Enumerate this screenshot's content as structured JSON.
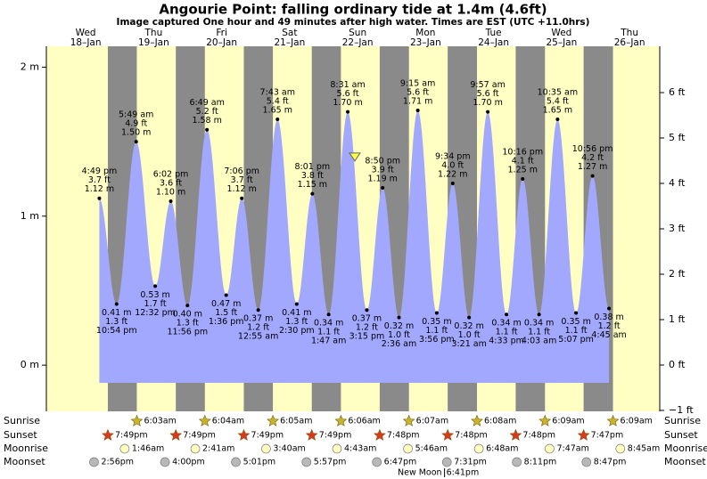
{
  "chart_data": {
    "type": "tide",
    "title": "Angourie Point: falling  ordinary tide at 1.4m (4.6ft)",
    "subtitle": "Image captured One hour and 49 minutes after high water. Times are EST (UTC +11.0hrs)",
    "ylim": [
      -0.31,
      2.14
    ],
    "yticks": [
      {
        "value": 0,
        "label": "0 m"
      },
      {
        "value": 1,
        "label": "1 m"
      },
      {
        "value": 2,
        "label": "2 m"
      }
    ],
    "y2lim": [
      -1.02,
      7.02
    ],
    "y2ticks": [
      {
        "value": -1,
        "label": "−1 ft"
      },
      {
        "value": 0,
        "label": "0 ft"
      },
      {
        "value": 1,
        "label": "1 ft"
      },
      {
        "value": 2,
        "label": "2 ft"
      },
      {
        "value": 3,
        "label": "3 ft"
      },
      {
        "value": 4,
        "label": "4 ft"
      },
      {
        "value": 5,
        "label": "5 ft"
      },
      {
        "value": 6,
        "label": "6 ft"
      }
    ],
    "current_height_m": 1.4,
    "colors": {
      "day": "#ffffc4",
      "night": "#8a8a8a",
      "water": "#a3a8ff",
      "header": "#e00000"
    },
    "row_labels": [
      "Sunrise",
      "Sunset",
      "Moonrise",
      "Moonset"
    ],
    "days": [
      {
        "weekday": "Wed",
        "date": "18–Jan",
        "tides": [
          {
            "time": "4:49 pm",
            "m": 1.12,
            "m_label": "1.12 m",
            "ft": 3.7,
            "ft_label": "3.7 ft"
          },
          {
            "time": "10:54 pm",
            "m": 0.41,
            "m_label": "0.41 m",
            "ft": 1.3,
            "ft_label": "1.3 ft"
          }
        ],
        "sunset": "7:49pm",
        "moonset": "2:56pm"
      },
      {
        "weekday": "Thu",
        "date": "19–Jan",
        "tides": [
          {
            "time": "5:49 am",
            "m": 1.5,
            "m_label": "1.50 m",
            "ft": 4.9,
            "ft_label": "4.9 ft"
          },
          {
            "time": "12:32 pm",
            "m": 0.53,
            "m_label": "0.53 m",
            "ft": 1.7,
            "ft_label": "1.7 ft"
          },
          {
            "time": "6:02 pm",
            "m": 1.1,
            "m_label": "1.10 m",
            "ft": 3.6,
            "ft_label": "3.6 ft"
          },
          {
            "time": "11:56 pm",
            "m": 0.4,
            "m_label": "0.40 m",
            "ft": 1.3,
            "ft_label": "1.3 ft"
          }
        ],
        "sunrise": "6:03am",
        "sunset": "7:49pm",
        "moonrise": "1:46am",
        "moonset": "4:00pm"
      },
      {
        "weekday": "Fri",
        "date": "20–Jan",
        "tides": [
          {
            "time": "6:49 am",
            "m": 1.58,
            "m_label": "1.58 m",
            "ft": 5.2,
            "ft_label": "5.2 ft"
          },
          {
            "time": "1:36 pm",
            "m": 0.47,
            "m_label": "0.47 m",
            "ft": 1.5,
            "ft_label": "1.5 ft"
          },
          {
            "time": "7:06 pm",
            "m": 1.12,
            "m_label": "1.12 m",
            "ft": 3.7,
            "ft_label": "3.7 ft"
          }
        ],
        "sunrise": "6:04am",
        "sunset": "7:49pm",
        "moonrise": "2:41am",
        "moonset": "5:01pm"
      },
      {
        "weekday": "Sat",
        "date": "21–Jan",
        "tides": [
          {
            "time": "12:55 am",
            "m": 0.37,
            "m_label": "0.37 m",
            "ft": 1.2,
            "ft_label": "1.2 ft"
          },
          {
            "time": "7:43 am",
            "m": 1.65,
            "m_label": "1.65 m",
            "ft": 5.4,
            "ft_label": "5.4 ft"
          },
          {
            "time": "2:30 pm",
            "m": 0.41,
            "m_label": "0.41 m",
            "ft": 1.3,
            "ft_label": "1.3 ft"
          },
          {
            "time": "8:01 pm",
            "m": 1.15,
            "m_label": "1.15 m",
            "ft": 3.8,
            "ft_label": "3.8 ft"
          }
        ],
        "sunrise": "6:05am",
        "sunset": "7:49pm",
        "moonrise": "3:40am",
        "moonset": "5:57pm"
      },
      {
        "weekday": "Sun",
        "date": "22–Jan",
        "tides": [
          {
            "time": "1:47 am",
            "m": 0.34,
            "m_label": "0.34 m",
            "ft": 1.1,
            "ft_label": "1.1 ft"
          },
          {
            "time": "8:31 am",
            "m": 1.7,
            "m_label": "1.70 m",
            "ft": 5.6,
            "ft_label": "5.6 ft"
          },
          {
            "time": "3:15 pm",
            "m": 0.37,
            "m_label": "0.37 m",
            "ft": 1.2,
            "ft_label": "1.2 ft"
          },
          {
            "time": "8:50 pm",
            "m": 1.19,
            "m_label": "1.19 m",
            "ft": 3.9,
            "ft_label": "3.9 ft"
          }
        ],
        "sunrise": "6:06am",
        "sunset": "7:48pm",
        "moonrise": "4:43am",
        "moonset": "6:47pm"
      },
      {
        "weekday": "Mon",
        "date": "23–Jan",
        "tides": [
          {
            "time": "2:36 am",
            "m": 0.32,
            "m_label": "0.32 m",
            "ft": 1.0,
            "ft_label": "1.0 ft"
          },
          {
            "time": "9:15 am",
            "m": 1.71,
            "m_label": "1.71 m",
            "ft": 5.6,
            "ft_label": "5.6 ft"
          },
          {
            "time": "3:56 pm",
            "m": 0.35,
            "m_label": "0.35 m",
            "ft": 1.1,
            "ft_label": "1.1 ft"
          },
          {
            "time": "9:34 pm",
            "m": 1.22,
            "m_label": "1.22 m",
            "ft": 4.0,
            "ft_label": "4.0 ft"
          }
        ],
        "sunrise": "6:07am",
        "sunset": "7:48pm",
        "moonrise": "5:46am",
        "moonset": "7:31pm",
        "new_moon": {
          "label": "New Moon",
          "time": "6:41pm"
        }
      },
      {
        "weekday": "Tue",
        "date": "24–Jan",
        "tides": [
          {
            "time": "3:21 am",
            "m": 0.32,
            "m_label": "0.32 m",
            "ft": 1.0,
            "ft_label": "1.0 ft"
          },
          {
            "time": "9:57 am",
            "m": 1.7,
            "m_label": "1.70 m",
            "ft": 5.6,
            "ft_label": "5.6 ft"
          },
          {
            "time": "4:33 pm",
            "m": 0.34,
            "m_label": "0.34 m",
            "ft": 1.1,
            "ft_label": "1.1 ft"
          },
          {
            "time": "10:16 pm",
            "m": 1.25,
            "m_label": "1.25 m",
            "ft": 4.1,
            "ft_label": "4.1 ft"
          }
        ],
        "sunrise": "6:08am",
        "sunset": "7:48pm",
        "moonrise": "6:48am",
        "moonset": "8:11pm"
      },
      {
        "weekday": "Wed",
        "date": "25–Jan",
        "tides": [
          {
            "time": "4:03 am",
            "m": 0.34,
            "m_label": "0.34 m",
            "ft": 1.1,
            "ft_label": "1.1 ft"
          },
          {
            "time": "10:35 am",
            "m": 1.65,
            "m_label": "1.65 m",
            "ft": 5.4,
            "ft_label": "5.4 ft"
          },
          {
            "time": "5:07 pm",
            "m": 0.35,
            "m_label": "0.35 m",
            "ft": 1.1,
            "ft_label": "1.1 ft"
          },
          {
            "time": "10:56 pm",
            "m": 1.27,
            "m_label": "1.27 m",
            "ft": 4.2,
            "ft_label": "4.2 ft"
          }
        ],
        "sunrise": "6:09am",
        "sunset": "7:47pm",
        "moonrise": "7:47am",
        "moonset": "8:47pm"
      },
      {
        "weekday": "Thu",
        "date": "26–Jan",
        "tides": [
          {
            "time": "4:45 am",
            "m": 0.38,
            "m_label": "0.38 m",
            "ft": 1.2,
            "ft_label": "1.2 ft"
          }
        ],
        "sunrise": "6:09am",
        "moonrise": "8:45am"
      }
    ]
  }
}
